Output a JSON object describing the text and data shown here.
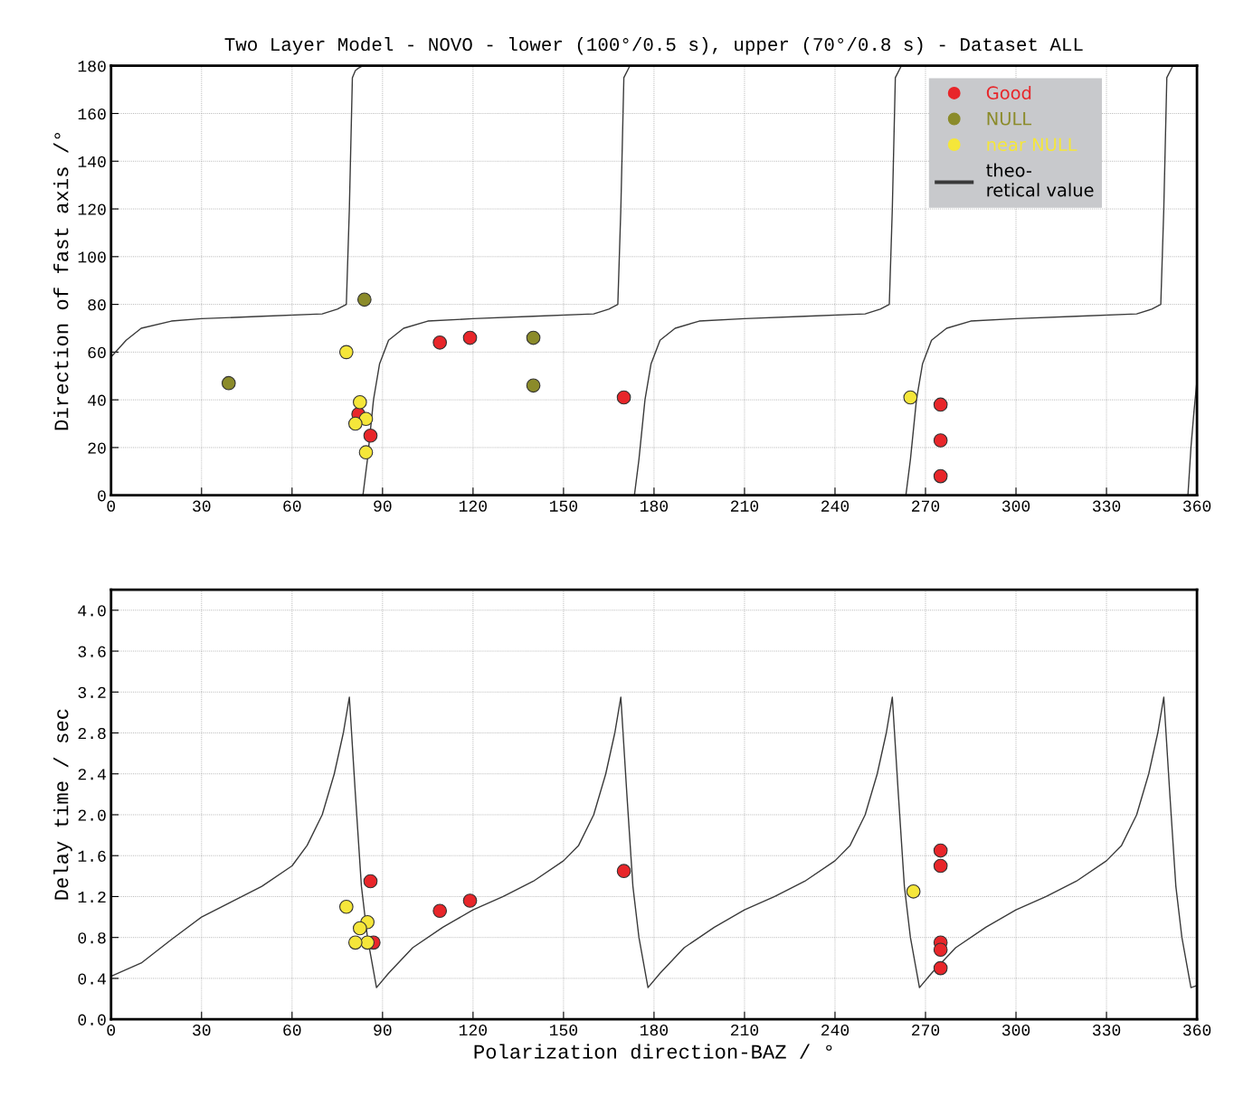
{
  "chart_data": [
    {
      "type": "scatter",
      "title": "Two Layer Model - NOVO - lower (100°/0.5 s), upper (70°/0.8 s) - Dataset ALL",
      "ylabel": "Direction of fast axis /°",
      "xlim": [
        0,
        360
      ],
      "xticks": [
        0,
        30,
        60,
        90,
        120,
        150,
        180,
        210,
        240,
        270,
        300,
        330,
        360
      ],
      "ylim": [
        0,
        180
      ],
      "yticks": [
        0,
        20,
        40,
        60,
        80,
        100,
        120,
        140,
        160,
        180
      ],
      "grid": true,
      "legend": "top right",
      "series": [
        {
          "name": "Good",
          "color": "#e8262a",
          "marker": "circle",
          "x": [
            275,
            275,
            275,
            170,
            119,
            109,
            82,
            86
          ],
          "values": [
            38,
            23,
            8,
            41,
            66,
            64,
            34,
            25
          ]
        },
        {
          "name": "NULL",
          "color": "#8b8b2a",
          "marker": "circle",
          "x": [
            140,
            140,
            84,
            39
          ],
          "values": [
            66,
            46,
            82,
            47
          ]
        },
        {
          "name": "near NULL",
          "color": "#f5e63a",
          "marker": "circle",
          "x": [
            265,
            78,
            82.5,
            84.5,
            81,
            84.5
          ],
          "values": [
            41,
            60,
            39,
            32,
            30,
            18
          ]
        },
        {
          "name": "theo-\nretical value",
          "type": "line",
          "color": "#3a3a3a",
          "x": [
            0,
            5,
            10,
            20,
            30,
            50,
            70,
            75,
            78,
            79,
            80,
            81,
            82,
            83.5,
            null,
            83.5,
            85,
            87,
            89,
            92,
            97,
            105,
            120,
            140,
            160,
            165,
            168,
            169,
            170,
            172,
            null,
            173.5,
            175,
            177,
            179,
            182,
            187,
            195,
            210,
            230,
            250,
            255,
            258,
            259,
            260,
            262,
            null,
            263.5,
            265,
            267,
            269,
            272,
            277,
            285,
            300,
            320,
            340,
            345,
            348,
            349,
            350,
            352,
            355,
            null,
            357,
            358,
            359,
            360
          ],
          "values": [
            58,
            65,
            70,
            73,
            74,
            75,
            76,
            78,
            80,
            120,
            175,
            178,
            179,
            180,
            null,
            0,
            15,
            40,
            55,
            65,
            70,
            73,
            74,
            75,
            76,
            78,
            80,
            120,
            175,
            180,
            null,
            0,
            15,
            40,
            55,
            65,
            70,
            73,
            74,
            75,
            76,
            78,
            80,
            120,
            175,
            180,
            null,
            0,
            15,
            40,
            55,
            65,
            70,
            73,
            74,
            75,
            76,
            78,
            80,
            120,
            175,
            180,
            180,
            null,
            0,
            20,
            35,
            48
          ]
        }
      ]
    },
    {
      "type": "scatter",
      "xlabel": "Polarization direction-BAZ / °",
      "ylabel": "Delay time / sec",
      "xlim": [
        0,
        360
      ],
      "xticks": [
        0,
        30,
        60,
        90,
        120,
        150,
        180,
        210,
        240,
        270,
        300,
        330,
        360
      ],
      "ylim": [
        0,
        4.2
      ],
      "yticks": [
        {
          "value": 0,
          "label": "0.0"
        },
        0.4,
        0.8,
        1.2,
        1.6,
        {
          "value": 2,
          "label": "2.0"
        },
        2.4,
        2.8,
        3.2,
        3.6,
        {
          "value": 4,
          "label": "4.0"
        }
      ],
      "grid": true,
      "series": [
        {
          "color": "#e8262a",
          "marker": "circle",
          "x": [
            275,
            275,
            275,
            275,
            275,
            170,
            119,
            109,
            86,
            87
          ],
          "values": [
            1.65,
            1.5,
            0.75,
            0.68,
            0.5,
            1.45,
            1.16,
            1.06,
            1.35,
            0.75
          ]
        },
        {
          "color": "#f5e63a",
          "marker": "circle",
          "x": [
            266,
            78,
            85,
            82.5,
            85,
            81
          ],
          "values": [
            1.25,
            1.1,
            0.95,
            0.89,
            0.75,
            0.75
          ]
        },
        {
          "type": "line",
          "color": "#3a3a3a",
          "x": [
            0,
            10,
            20,
            30,
            40,
            50,
            60,
            65,
            70,
            74,
            77,
            79,
            81,
            83,
            85,
            88,
            92,
            100,
            110,
            120,
            130,
            140,
            150,
            155,
            160,
            164,
            167,
            169,
            171,
            173,
            175,
            178,
            182,
            190,
            200,
            210,
            220,
            230,
            240,
            245,
            250,
            254,
            257,
            259,
            261,
            263,
            265,
            268,
            272,
            280,
            290,
            300,
            310,
            320,
            330,
            335,
            340,
            344,
            347,
            349,
            351,
            353,
            355,
            358,
            360
          ],
          "values": [
            0.42,
            0.55,
            0.78,
            1.0,
            1.15,
            1.3,
            1.5,
            1.7,
            2.0,
            2.4,
            2.8,
            3.15,
            2.2,
            1.3,
            0.8,
            0.31,
            0.45,
            0.7,
            0.9,
            1.07,
            1.2,
            1.35,
            1.55,
            1.7,
            2.0,
            2.4,
            2.8,
            3.15,
            2.2,
            1.3,
            0.8,
            0.31,
            0.45,
            0.7,
            0.9,
            1.07,
            1.2,
            1.35,
            1.55,
            1.7,
            2.0,
            2.4,
            2.8,
            3.15,
            2.2,
            1.3,
            0.8,
            0.31,
            0.45,
            0.7,
            0.9,
            1.07,
            1.2,
            1.35,
            1.55,
            1.7,
            2.0,
            2.4,
            2.8,
            3.15,
            2.2,
            1.3,
            0.8,
            0.31,
            0.33
          ]
        }
      ]
    }
  ]
}
